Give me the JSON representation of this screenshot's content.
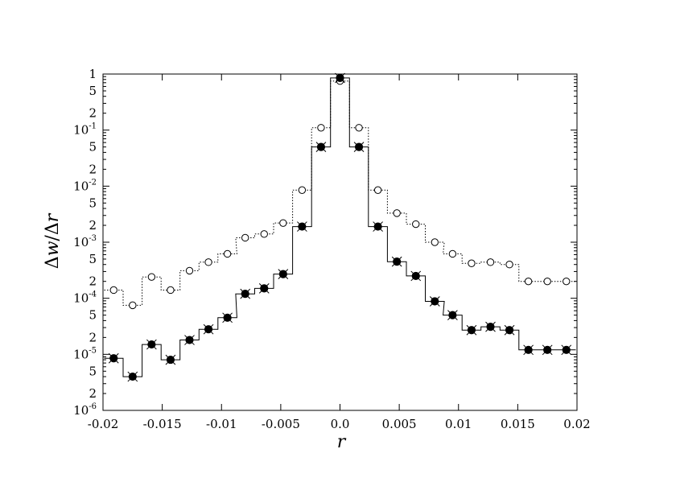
{
  "chart_data": {
    "type": "line",
    "title": "",
    "xlabel": "r",
    "ylabel_parts": [
      "Δ",
      "w",
      "/",
      "Δ",
      "r"
    ],
    "xlim": [
      -0.02,
      0.02
    ],
    "ylim": [
      1e-06,
      1
    ],
    "yscale": "log",
    "grid": false,
    "x_tick_labels": [
      "-0.02",
      "-0.015",
      "-0.01",
      "-0.005",
      "0.0",
      "0.005",
      "0.01",
      "0.015",
      "0.02"
    ],
    "x_ticks": [
      -0.02,
      -0.015,
      -0.01,
      -0.005,
      0,
      0.005,
      0.01,
      0.015,
      0.02
    ],
    "y_major_ticks": [
      {
        "value": 1e-06,
        "base": "10",
        "exp": "-6"
      },
      {
        "value": 1e-05,
        "base": "10",
        "exp": "-5"
      },
      {
        "value": 0.0001,
        "base": "10",
        "exp": "-4"
      },
      {
        "value": 0.001,
        "base": "10",
        "exp": "-3"
      },
      {
        "value": 0.01,
        "base": "10",
        "exp": "-2"
      },
      {
        "value": 0.1,
        "base": "10",
        "exp": "-1"
      },
      {
        "value": 1,
        "base": "1",
        "exp": ""
      }
    ],
    "y_minor_labels": [
      "2",
      "5"
    ],
    "x": [
      -0.0191,
      -0.0175,
      -0.0159,
      -0.0143,
      -0.0127,
      -0.0111,
      -0.0095,
      -0.008,
      -0.0064,
      -0.0048,
      -0.0032,
      -0.0016,
      0.0,
      0.0016,
      0.0032,
      0.0048,
      0.0064,
      0.008,
      0.0095,
      0.0111,
      0.0127,
      0.0143,
      0.0159,
      0.0175,
      0.0191
    ],
    "series": [
      {
        "style": "dotted-step-open-circle",
        "values": [
          0.00014,
          7.5e-05,
          0.00024,
          0.00014,
          0.00031,
          0.00044,
          0.00062,
          0.0012,
          0.0014,
          0.0022,
          0.0085,
          0.11,
          0.75,
          0.11,
          0.0085,
          0.0033,
          0.0021,
          0.001,
          0.00062,
          0.00042,
          0.00044,
          0.0004,
          0.0002,
          0.0002,
          0.0002
        ]
      },
      {
        "style": "solid-step-filled-circle",
        "values": [
          8.5e-06,
          4e-06,
          1.5e-05,
          8e-06,
          1.8e-05,
          2.8e-05,
          4.5e-05,
          0.00012,
          0.00015,
          0.00027,
          0.0019,
          0.05,
          0.85,
          0.05,
          0.0019,
          0.00045,
          0.00025,
          8.8e-05,
          5e-05,
          2.7e-05,
          3.1e-05,
          2.7e-05,
          1.2e-05,
          1.2e-05,
          1.2e-05
        ]
      },
      {
        "style": "cross-marker",
        "values": [
          8.5e-06,
          4e-06,
          1.5e-05,
          8e-06,
          1.8e-05,
          2.8e-05,
          4.5e-05,
          0.00012,
          0.00015,
          0.00027,
          0.0019,
          0.05,
          0.85,
          0.05,
          0.0019,
          0.00045,
          0.00025,
          8.8e-05,
          5e-05,
          2.7e-05,
          3.1e-05,
          2.7e-05,
          1.2e-05,
          1.2e-05,
          1.2e-05
        ]
      }
    ]
  }
}
